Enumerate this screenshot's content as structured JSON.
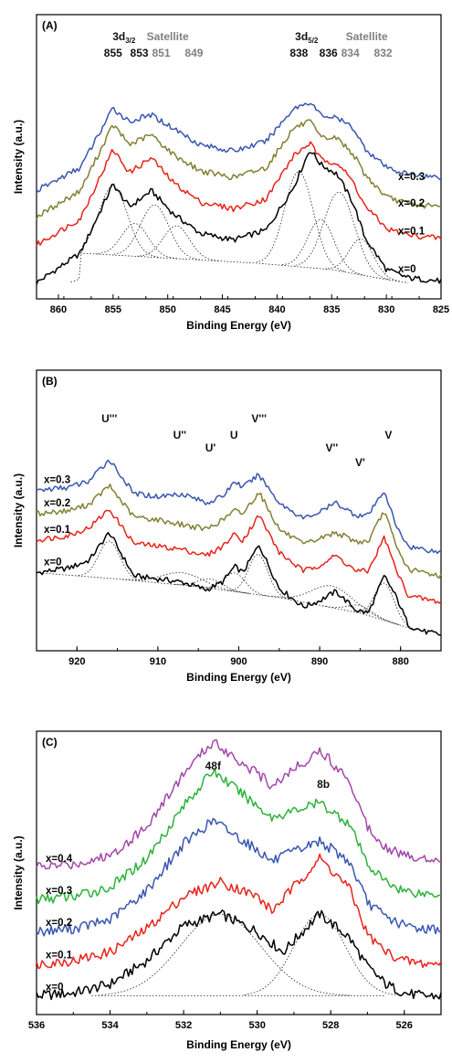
{
  "chart_data": [
    {
      "type": "line",
      "panel_label": "(A)",
      "xlabel": "Binding Energy (eV)",
      "ylabel": "Intensity (a.u.)",
      "xlim": [
        862,
        825
      ],
      "xticks": [
        860,
        855,
        850,
        845,
        840,
        835,
        830,
        825
      ],
      "annotations": [
        {
          "text": "3d",
          "sub": "3/2",
          "x": 854,
          "row": 0,
          "color": "#111111"
        },
        {
          "text": "855",
          "x": 855,
          "row": 1,
          "color": "#111111"
        },
        {
          "text": "853",
          "x": 852.6,
          "row": 1,
          "color": "#111111"
        },
        {
          "text": "Satellite",
          "x": 850,
          "row": 0,
          "color": "#7f7f7f"
        },
        {
          "text": "851",
          "x": 850.6,
          "row": 1,
          "color": "#7f7f7f"
        },
        {
          "text": "849",
          "x": 847.6,
          "row": 1,
          "color": "#7f7f7f"
        },
        {
          "text": "3d",
          "sub": "5/2",
          "x": 837.3,
          "row": 0,
          "color": "#111111"
        },
        {
          "text": "838",
          "x": 838,
          "row": 1,
          "color": "#111111"
        },
        {
          "text": "836",
          "x": 835.3,
          "row": 1,
          "color": "#111111"
        },
        {
          "text": "Satellite",
          "x": 831.8,
          "row": 0,
          "color": "#7f7f7f"
        },
        {
          "text": "834",
          "x": 833.3,
          "row": 1,
          "color": "#7f7f7f"
        },
        {
          "text": "832",
          "x": 830.3,
          "row": 1,
          "color": "#7f7f7f"
        }
      ],
      "series": [
        {
          "name": "x=0",
          "color": "#000000",
          "offset": 0.0,
          "x": [
            862,
            858,
            855,
            853.5,
            851.5,
            849.5,
            847,
            844,
            841,
            838.5,
            837,
            836,
            834.5,
            833,
            832,
            830,
            828,
            825
          ],
          "y": [
            0.02,
            0.2,
            0.62,
            0.48,
            0.58,
            0.44,
            0.32,
            0.28,
            0.34,
            0.6,
            0.83,
            0.74,
            0.68,
            0.5,
            0.3,
            0.1,
            0.05,
            0.03
          ]
        },
        {
          "name": "x=0.1",
          "color": "#e8241a",
          "offset": 0.23,
          "x": [
            862,
            858,
            855,
            853.5,
            851.5,
            849.5,
            847,
            844,
            841,
            838.5,
            837,
            836,
            834.5,
            833,
            832,
            830,
            828,
            825
          ],
          "y": [
            0.02,
            0.18,
            0.6,
            0.46,
            0.55,
            0.4,
            0.28,
            0.24,
            0.3,
            0.56,
            0.64,
            0.54,
            0.52,
            0.4,
            0.26,
            0.12,
            0.08,
            0.06
          ]
        },
        {
          "name": "x=0.2",
          "color": "#818134",
          "offset": 0.4,
          "x": [
            862,
            858,
            855,
            853.5,
            851.5,
            849.5,
            847,
            844,
            841,
            838.5,
            837,
            836,
            834.5,
            833,
            832,
            830,
            828,
            825
          ],
          "y": [
            0.02,
            0.18,
            0.58,
            0.46,
            0.52,
            0.4,
            0.3,
            0.26,
            0.32,
            0.56,
            0.6,
            0.5,
            0.5,
            0.4,
            0.28,
            0.14,
            0.1,
            0.08
          ]
        },
        {
          "name": "x=0.3",
          "color": "#3a56b0",
          "offset": 0.56,
          "x": [
            862,
            858,
            855,
            853.5,
            851.5,
            849.5,
            847,
            844,
            841,
            838.5,
            837,
            836,
            834.5,
            833,
            832,
            830,
            828,
            825
          ],
          "y": [
            0.02,
            0.16,
            0.52,
            0.44,
            0.48,
            0.4,
            0.3,
            0.26,
            0.32,
            0.52,
            0.56,
            0.48,
            0.46,
            0.4,
            0.28,
            0.16,
            0.12,
            0.1
          ]
        }
      ],
      "fit_components": [
        {
          "center": 855,
          "amp": 0.42,
          "sigma": 1.3
        },
        {
          "center": 853,
          "amp": 0.2,
          "sigma": 1.2
        },
        {
          "center": 851.2,
          "amp": 0.32,
          "sigma": 1.3
        },
        {
          "center": 849.2,
          "amp": 0.2,
          "sigma": 1.2
        },
        {
          "center": 838,
          "amp": 0.58,
          "sigma": 1.3
        },
        {
          "center": 836,
          "amp": 0.3,
          "sigma": 1.2
        },
        {
          "center": 834.3,
          "amp": 0.48,
          "sigma": 1.4
        },
        {
          "center": 832.3,
          "amp": 0.22,
          "sigma": 1.1
        }
      ],
      "baseline": {
        "x": [
          858,
          850,
          842,
          835,
          830,
          828
        ],
        "y": [
          0.2,
          0.17,
          0.14,
          0.1,
          0.04,
          0.02
        ]
      }
    },
    {
      "type": "line",
      "panel_label": "(B)",
      "xlabel": "Binding Energy (eV)",
      "ylabel": "Intensity (a.u.)",
      "xlim": [
        925,
        875
      ],
      "xticks": [
        920,
        910,
        900,
        890,
        880
      ],
      "annotations": [
        {
          "text": "U'''",
          "x": 916,
          "row": 0,
          "color": "#111111"
        },
        {
          "text": "U''",
          "x": 907.3,
          "row": 1,
          "color": "#111111"
        },
        {
          "text": "U'",
          "x": 903.5,
          "row": 2,
          "color": "#111111"
        },
        {
          "text": "U",
          "x": 900.6,
          "row": 1,
          "color": "#111111"
        },
        {
          "text": "V'''",
          "x": 897.5,
          "row": 0,
          "color": "#111111"
        },
        {
          "text": "V''",
          "x": 888.5,
          "row": 2,
          "color": "#111111"
        },
        {
          "text": "V'",
          "x": 885,
          "row": 3,
          "color": "#111111"
        },
        {
          "text": "V",
          "x": 881.5,
          "row": 1,
          "color": "#111111"
        }
      ],
      "series": [
        {
          "name": "x=0",
          "color": "#000000",
          "offset": 0.0,
          "x": [
            925,
            921,
            918.5,
            916,
            913,
            910,
            907,
            904,
            902,
            900.5,
            899.5,
            897.5,
            895,
            892,
            890,
            888,
            885.5,
            884,
            882,
            880.5,
            879,
            877,
            875
          ],
          "y": [
            0.42,
            0.45,
            0.5,
            0.68,
            0.4,
            0.38,
            0.36,
            0.31,
            0.36,
            0.46,
            0.42,
            0.6,
            0.32,
            0.2,
            0.24,
            0.3,
            0.18,
            0.16,
            0.4,
            0.26,
            0.08,
            0.04,
            0.02
          ]
        },
        {
          "name": "x=0.1",
          "color": "#e8241a",
          "offset": 0.21,
          "x": [
            925,
            921,
            918.5,
            916,
            913,
            910,
            907,
            904,
            902,
            900.5,
            899.5,
            897.5,
            895,
            892,
            890,
            888,
            885.5,
            884,
            882,
            880.5,
            879,
            877,
            875
          ],
          "y": [
            0.42,
            0.45,
            0.5,
            0.62,
            0.4,
            0.38,
            0.36,
            0.32,
            0.38,
            0.46,
            0.42,
            0.58,
            0.34,
            0.22,
            0.26,
            0.32,
            0.22,
            0.22,
            0.44,
            0.22,
            0.06,
            0.04,
            0.02
          ]
        },
        {
          "name": "x=0.2",
          "color": "#818134",
          "offset": 0.38,
          "x": [
            925,
            921,
            918.5,
            916,
            913,
            910,
            907,
            904,
            902,
            900.5,
            899.5,
            897.5,
            895,
            892,
            890,
            888,
            885.5,
            884,
            882,
            880.5,
            879,
            877,
            875
          ],
          "y": [
            0.42,
            0.44,
            0.48,
            0.6,
            0.4,
            0.38,
            0.35,
            0.32,
            0.38,
            0.44,
            0.42,
            0.56,
            0.32,
            0.22,
            0.26,
            0.3,
            0.24,
            0.24,
            0.44,
            0.2,
            0.06,
            0.04,
            0.02
          ]
        },
        {
          "name": "x=0.3",
          "color": "#3a56b0",
          "offset": 0.53,
          "x": [
            925,
            921,
            918.5,
            916,
            913,
            910,
            907,
            904,
            902,
            900.5,
            899.5,
            897.5,
            895,
            892,
            890,
            888,
            885.5,
            884,
            882,
            880.5,
            879,
            877,
            875
          ],
          "y": [
            0.42,
            0.44,
            0.48,
            0.62,
            0.4,
            0.38,
            0.4,
            0.34,
            0.38,
            0.48,
            0.44,
            0.52,
            0.34,
            0.24,
            0.28,
            0.34,
            0.26,
            0.26,
            0.42,
            0.18,
            0.06,
            0.04,
            0.02
          ]
        }
      ],
      "fit_components": [
        {
          "center": 916,
          "amp": 0.24,
          "sigma": 1.3
        },
        {
          "center": 907,
          "amp": 0.08,
          "sigma": 2.5
        },
        {
          "center": 903.5,
          "amp": 0.06,
          "sigma": 1.5
        },
        {
          "center": 900.5,
          "amp": 0.12,
          "sigma": 1.3
        },
        {
          "center": 897.6,
          "amp": 0.26,
          "sigma": 1.2
        },
        {
          "center": 888.5,
          "amp": 0.14,
          "sigma": 2.5
        },
        {
          "center": 885,
          "amp": 0.05,
          "sigma": 1.5
        },
        {
          "center": 882,
          "amp": 0.24,
          "sigma": 1.2
        }
      ],
      "baseline": {
        "x": [
          925,
          915,
          905,
          895,
          885,
          878
        ],
        "y": [
          0.42,
          0.38,
          0.33,
          0.26,
          0.16,
          0.05
        ]
      }
    },
    {
      "type": "line",
      "panel_label": "(C)",
      "xlabel": "Binding Energy (eV)",
      "ylabel": "Intensity (a.u.)",
      "xlim": [
        536,
        525
      ],
      "xticks": [
        536,
        534,
        532,
        530,
        528,
        526
      ],
      "annotations": [
        {
          "text": "48f",
          "x": 531.2,
          "row": 0,
          "color": "#111111"
        },
        {
          "text": "8b",
          "x": 528.2,
          "row": 1,
          "color": "#111111"
        }
      ],
      "series": [
        {
          "name": "x=0",
          "color": "#000000",
          "offset": 0.0,
          "x": [
            536,
            535,
            534,
            533,
            532,
            531,
            530,
            529.3,
            528.3,
            527.5,
            527,
            526.5,
            526,
            525.5,
            525
          ],
          "y": [
            0.02,
            0.03,
            0.06,
            0.14,
            0.26,
            0.3,
            0.24,
            0.17,
            0.3,
            0.22,
            0.12,
            0.06,
            0.03,
            0.02,
            0.02
          ]
        },
        {
          "name": "x=0.1",
          "color": "#e8241a",
          "offset": 0.11,
          "x": [
            536,
            535,
            534,
            533,
            532,
            531,
            530,
            529.6,
            528.3,
            527.5,
            527,
            526.5,
            526,
            525.5,
            525
          ],
          "y": [
            0.02,
            0.03,
            0.06,
            0.14,
            0.25,
            0.3,
            0.25,
            0.2,
            0.38,
            0.28,
            0.12,
            0.06,
            0.03,
            0.02,
            0.02
          ]
        },
        {
          "name": "x=0.2",
          "color": "#3a56b0",
          "offset": 0.22,
          "x": [
            536,
            535,
            534,
            533,
            532,
            531.2,
            530,
            529.6,
            528.3,
            527.5,
            527,
            526.5,
            526,
            525.5,
            525
          ],
          "y": [
            0.02,
            0.03,
            0.06,
            0.16,
            0.32,
            0.4,
            0.3,
            0.26,
            0.33,
            0.26,
            0.12,
            0.07,
            0.04,
            0.03,
            0.03
          ]
        },
        {
          "name": "x=0.3",
          "color": "#2bb33a",
          "offset": 0.33,
          "x": [
            536,
            535,
            534,
            533,
            532,
            531.2,
            530,
            529.6,
            528.3,
            527.5,
            527,
            526.5,
            526,
            525.5,
            525
          ],
          "y": [
            0.02,
            0.03,
            0.06,
            0.16,
            0.34,
            0.46,
            0.34,
            0.3,
            0.35,
            0.28,
            0.14,
            0.08,
            0.05,
            0.04,
            0.04
          ]
        },
        {
          "name": "x=0.4",
          "color": "#a347a8",
          "offset": 0.44,
          "x": [
            536,
            535,
            534,
            533,
            532,
            531.2,
            530,
            529.6,
            528.3,
            527.5,
            527,
            526.5,
            526,
            525.5,
            525
          ],
          "y": [
            0.02,
            0.03,
            0.06,
            0.16,
            0.34,
            0.45,
            0.34,
            0.3,
            0.42,
            0.32,
            0.16,
            0.09,
            0.06,
            0.05,
            0.05
          ]
        }
      ],
      "fit_components": [
        {
          "center": 531,
          "amp": 0.28,
          "sigma": 1.1
        },
        {
          "center": 528.3,
          "amp": 0.28,
          "sigma": 0.7
        }
      ],
      "baseline": {
        "x": [
          534.5,
          532,
          530,
          528,
          526.5
        ],
        "y": [
          0.02,
          0.02,
          0.02,
          0.02,
          0.02
        ]
      }
    }
  ]
}
